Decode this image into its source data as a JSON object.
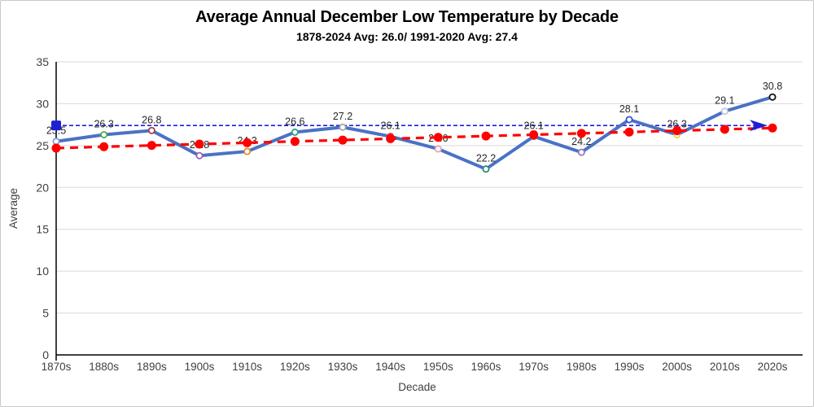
{
  "header": {
    "title": "Average Annual December Low Temperature by Decade",
    "subtitle": "1878-2024 Avg: 26.0/ 1991-2020 Avg: 27.4"
  },
  "chart_data": {
    "type": "line",
    "title": "Average Annual December Low Temperature by Decade",
    "subtitle": "1878-2024 Avg: 26.0/ 1991-2020 Avg: 27.4",
    "xlabel": "Decade",
    "ylabel": "Average",
    "ylim": [
      0,
      35
    ],
    "yticks": [
      0,
      5,
      10,
      15,
      20,
      25,
      30,
      35
    ],
    "grid": true,
    "legend": false,
    "categories": [
      "1870s",
      "1880s",
      "1890s",
      "1900s",
      "1910s",
      "1920s",
      "1930s",
      "1940s",
      "1950s",
      "1960s",
      "1970s",
      "1980s",
      "1990s",
      "2000s",
      "2010s",
      "2020s"
    ],
    "series": [
      {
        "name": "decade-average-low",
        "type": "line",
        "color": "#4a72c4",
        "values": [
          25.5,
          26.3,
          26.8,
          23.8,
          24.3,
          26.6,
          27.2,
          26.1,
          24.6,
          22.2,
          26.1,
          24.2,
          28.1,
          26.3,
          29.1,
          30.8
        ],
        "data_labels": [
          "25.5",
          "26.3",
          "26.8",
          "23.8",
          "24.3",
          "26.6",
          "27.2",
          "26.1",
          "24.6",
          "22.2",
          "26.1",
          "24.2",
          "28.1",
          "26.3",
          "29.1",
          "30.8"
        ],
        "marker_colors": [
          "#7b9fd9",
          "#4fae4f",
          "#a23b4a",
          "#9c5fb5",
          "#e08b2e",
          "#2fa389",
          "#aba6a6",
          "#d94a3f",
          "#e6a6b8",
          "#2e8b74",
          "#a8692f",
          "#8e7cc3",
          "#2f54d1",
          "#e0d94f",
          "#c6c6e8",
          "#111111"
        ]
      },
      {
        "name": "linear-trend",
        "type": "trendline",
        "style": "dashed",
        "color": "#fe0000",
        "start": 24.7,
        "end": 27.1
      },
      {
        "name": "1991-2020-average-reference",
        "type": "reference-line",
        "style": "dashed",
        "color": "#1f1fd6",
        "value": 27.4
      }
    ],
    "colors": {
      "gridline": "#d9d9d9",
      "axis": "#000000",
      "tick_label": "#404040",
      "data_label": "#262626"
    }
  }
}
